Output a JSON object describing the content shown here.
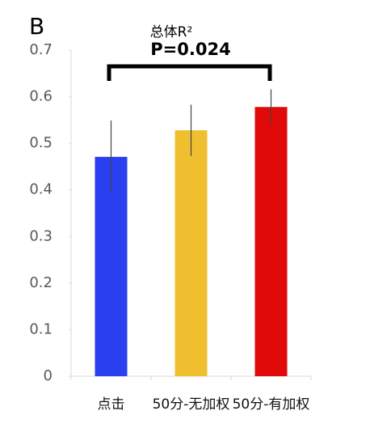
{
  "panel_label": "B",
  "chart_data": {
    "type": "bar",
    "title": "总体R²",
    "annotation": "P=0.024",
    "categories": [
      "点击",
      "50分-无加权",
      "50分-有加权"
    ],
    "values": [
      0.471,
      0.528,
      0.578
    ],
    "errors": [
      0.078,
      0.055,
      0.038
    ],
    "colors": [
      "#2a3ff0",
      "#f0bf30",
      "#e00a0a"
    ],
    "ylim": [
      0,
      0.7
    ],
    "yticks": [
      0,
      0.1,
      0.2,
      0.3,
      0.4,
      0.5,
      0.6,
      0.7
    ],
    "grid": false
  }
}
